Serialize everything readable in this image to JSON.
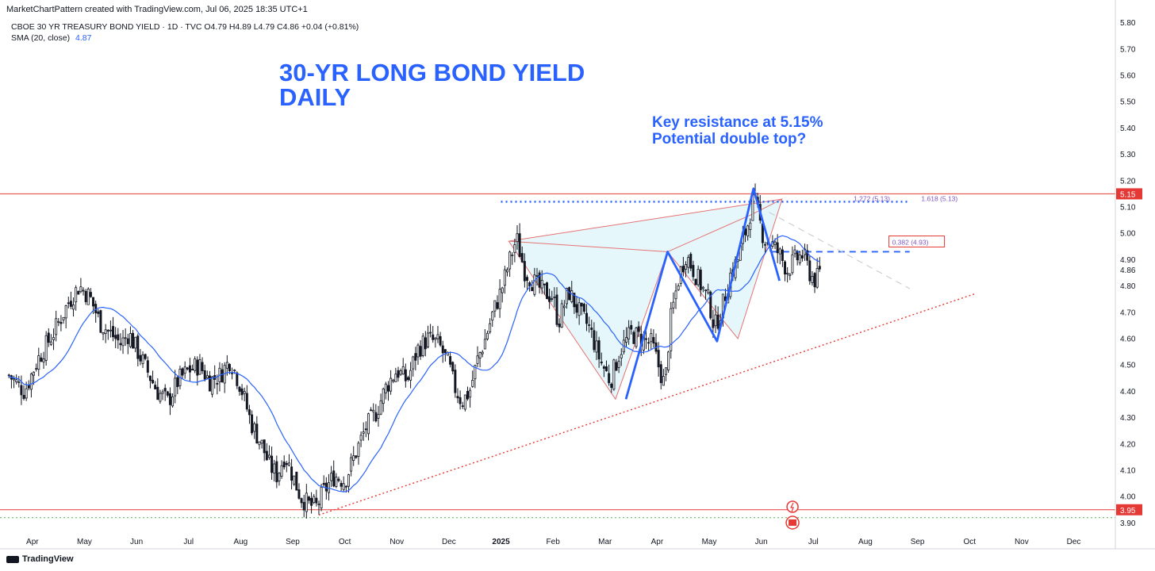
{
  "header": {
    "credit": "MarketChartPattern created with TradingView.com, Jul 06, 2025 18:35 UTC+1",
    "symbol": "CBOE 30 YR TREASURY BOND YIELD · 1D · TVC  O4.79  H4.89  L4.79  C4.86  +0.04 (+0.81%)",
    "sma_label": "SMA (20, close)",
    "sma_value": "4.87"
  },
  "title": {
    "line1": "30-YR LONG BOND YIELD",
    "line2": "DAILY"
  },
  "annotation": {
    "line1": "Key resistance at 5.15%",
    "line2": "Potential double top?"
  },
  "footer": {
    "brand": "TradingView"
  },
  "colors": {
    "accent": "#2962ff",
    "resistance": "#e53935",
    "pattern_fill": "#e6f7fb",
    "candle": "#131722"
  },
  "chart_data": {
    "type": "candlestick",
    "y_axis": {
      "ticks": [
        "5.80",
        "5.70",
        "5.60",
        "5.50",
        "5.40",
        "5.30",
        "5.20",
        "5.10",
        "5.00",
        "4.90",
        "4.80",
        "4.70",
        "4.60",
        "4.50",
        "4.40",
        "4.30",
        "4.20",
        "4.10",
        "4.00",
        "3.90"
      ],
      "extra_label": "4.86",
      "range": [
        3.88,
        5.82
      ]
    },
    "x_axis": {
      "labels": [
        {
          "t": "Apr",
          "m": 0
        },
        {
          "t": "May",
          "m": 1
        },
        {
          "t": "Jun",
          "m": 2
        },
        {
          "t": "Jul",
          "m": 3
        },
        {
          "t": "Aug",
          "m": 4
        },
        {
          "t": "Sep",
          "m": 5
        },
        {
          "t": "Oct",
          "m": 6
        },
        {
          "t": "Nov",
          "m": 7
        },
        {
          "t": "Dec",
          "m": 8
        },
        {
          "t": "2025",
          "m": 9
        },
        {
          "t": "Feb",
          "m": 10
        },
        {
          "t": "Mar",
          "m": 11
        },
        {
          "t": "Apr",
          "m": 12
        },
        {
          "t": "May",
          "m": 13
        },
        {
          "t": "Jun",
          "m": 14
        },
        {
          "t": "Jul",
          "m": 15
        },
        {
          "t": "Aug",
          "m": 16
        },
        {
          "t": "Sep",
          "m": 17
        },
        {
          "t": "Oct",
          "m": 18
        },
        {
          "t": "Nov",
          "m": 19
        },
        {
          "t": "Dec",
          "m": 20
        }
      ],
      "range_months": [
        -0.5,
        20.8
      ]
    },
    "price_path": [
      [
        -0.45,
        4.46
      ],
      [
        -0.15,
        4.4
      ],
      [
        0.1,
        4.52
      ],
      [
        0.4,
        4.62
      ],
      [
        0.7,
        4.74
      ],
      [
        0.9,
        4.8
      ],
      [
        1.1,
        4.76
      ],
      [
        1.3,
        4.66
      ],
      [
        1.5,
        4.62
      ],
      [
        1.7,
        4.58
      ],
      [
        1.85,
        4.62
      ],
      [
        2.0,
        4.56
      ],
      [
        2.2,
        4.48
      ],
      [
        2.4,
        4.4
      ],
      [
        2.6,
        4.36
      ],
      [
        2.8,
        4.44
      ],
      [
        3.0,
        4.48
      ],
      [
        3.2,
        4.5
      ],
      [
        3.4,
        4.44
      ],
      [
        3.6,
        4.46
      ],
      [
        3.8,
        4.52
      ],
      [
        4.0,
        4.42
      ],
      [
        4.2,
        4.28
      ],
      [
        4.4,
        4.2
      ],
      [
        4.55,
        4.12
      ],
      [
        4.7,
        4.08
      ],
      [
        4.85,
        4.16
      ],
      [
        5.0,
        4.08
      ],
      [
        5.15,
        4.0
      ],
      [
        5.3,
        3.97
      ],
      [
        5.45,
        3.96
      ],
      [
        5.6,
        4.02
      ],
      [
        5.8,
        4.08
      ],
      [
        6.0,
        4.06
      ],
      [
        6.2,
        4.16
      ],
      [
        6.4,
        4.26
      ],
      [
        6.6,
        4.32
      ],
      [
        6.8,
        4.42
      ],
      [
        7.0,
        4.48
      ],
      [
        7.2,
        4.44
      ],
      [
        7.4,
        4.56
      ],
      [
        7.6,
        4.6
      ],
      [
        7.8,
        4.58
      ],
      [
        8.0,
        4.5
      ],
      [
        8.1,
        4.42
      ],
      [
        8.25,
        4.36
      ],
      [
        8.4,
        4.4
      ],
      [
        8.55,
        4.52
      ],
      [
        8.7,
        4.6
      ],
      [
        8.85,
        4.7
      ],
      [
        9.0,
        4.78
      ],
      [
        9.2,
        4.92
      ],
      [
        9.3,
        4.98
      ],
      [
        9.45,
        4.86
      ],
      [
        9.6,
        4.82
      ],
      [
        9.8,
        4.78
      ],
      [
        10.0,
        4.76
      ],
      [
        10.1,
        4.66
      ],
      [
        10.3,
        4.78
      ],
      [
        10.5,
        4.7
      ],
      [
        10.7,
        4.64
      ],
      [
        10.9,
        4.52
      ],
      [
        11.1,
        4.44
      ],
      [
        11.3,
        4.56
      ],
      [
        11.5,
        4.62
      ],
      [
        11.7,
        4.6
      ],
      [
        11.9,
        4.58
      ],
      [
        12.05,
        4.48
      ],
      [
        12.15,
        4.42
      ],
      [
        12.25,
        4.66
      ],
      [
        12.4,
        4.82
      ],
      [
        12.55,
        4.92
      ],
      [
        12.7,
        4.86
      ],
      [
        12.9,
        4.78
      ],
      [
        13.0,
        4.74
      ],
      [
        13.1,
        4.64
      ],
      [
        13.25,
        4.72
      ],
      [
        13.4,
        4.84
      ],
      [
        13.55,
        4.9
      ],
      [
        13.65,
        4.98
      ],
      [
        13.75,
        5.04
      ],
      [
        13.85,
        5.14
      ],
      [
        13.95,
        5.06
      ],
      [
        14.05,
        4.98
      ],
      [
        14.2,
        4.96
      ],
      [
        14.35,
        4.92
      ],
      [
        14.5,
        4.86
      ],
      [
        14.65,
        4.9
      ],
      [
        14.8,
        4.92
      ],
      [
        14.95,
        4.84
      ],
      [
        15.05,
        4.82
      ],
      [
        15.15,
        4.86
      ]
    ],
    "sma_period": 20,
    "sma_last": 4.87,
    "price_labels": [
      {
        "text": "5.15",
        "value": 5.15,
        "color": "#e53935"
      },
      {
        "text": "3.95",
        "value": 3.95,
        "color": "#e53935"
      }
    ],
    "lines": [
      {
        "kind": "horizontal",
        "value": 5.15,
        "color": "#e53935",
        "style": "solid"
      },
      {
        "kind": "horizontal",
        "value": 3.95,
        "color": "#e53935",
        "style": "solid"
      },
      {
        "kind": "horizontal",
        "value": 3.92,
        "color": "#4caf50",
        "style": "dotted"
      },
      {
        "kind": "segment",
        "from": [
          5.5,
          3.93
        ],
        "to": [
          18.1,
          4.77
        ],
        "color": "#e53935",
        "style": "dotted",
        "width": 1.4
      },
      {
        "kind": "segment",
        "from": [
          9.0,
          5.12
        ],
        "to": [
          16.85,
          5.12
        ],
        "color": "#2962ff",
        "style": "dotted",
        "width": 2.4
      },
      {
        "kind": "segment",
        "from": [
          14.2,
          4.93
        ],
        "to": [
          16.85,
          4.93
        ],
        "color": "#2962ff",
        "style": "dashed",
        "width": 1.8
      },
      {
        "kind": "segment",
        "from": [
          14.15,
          5.08
        ],
        "to": [
          16.85,
          4.79
        ],
        "color": "#c4c7ce",
        "style": "dashed",
        "width": 1
      }
    ],
    "fib_labels": [
      {
        "text": "1.272 (5.13)",
        "x": 16.2,
        "value": 5.125
      },
      {
        "text": "1.618 (5.13)",
        "x": 17.5,
        "value": 5.125
      },
      {
        "text": "0.382 (4.93)",
        "x": 17.0,
        "value": 4.96
      }
    ],
    "pattern": {
      "fill": "#e6f7fb",
      "points": [
        [
          9.15,
          4.97
        ],
        [
          11.2,
          4.37
        ],
        [
          12.2,
          4.93
        ],
        [
          13.55,
          4.6
        ],
        [
          14.4,
          5.13
        ]
      ],
      "edges": [
        [
          [
            9.15,
            4.97
          ],
          [
            12.2,
            4.93
          ]
        ],
        [
          [
            12.2,
            4.93
          ],
          [
            13.8,
            5.07
          ]
        ],
        [
          [
            13.8,
            5.07
          ],
          [
            14.4,
            5.13
          ]
        ]
      ]
    },
    "swing_lines": [
      {
        "points": [
          [
            11.4,
            4.37
          ],
          [
            12.2,
            4.93
          ],
          [
            13.15,
            4.59
          ],
          [
            13.85,
            5.17
          ],
          [
            14.35,
            4.82
          ]
        ],
        "color": "#2962ff",
        "width": 2.8
      }
    ]
  }
}
